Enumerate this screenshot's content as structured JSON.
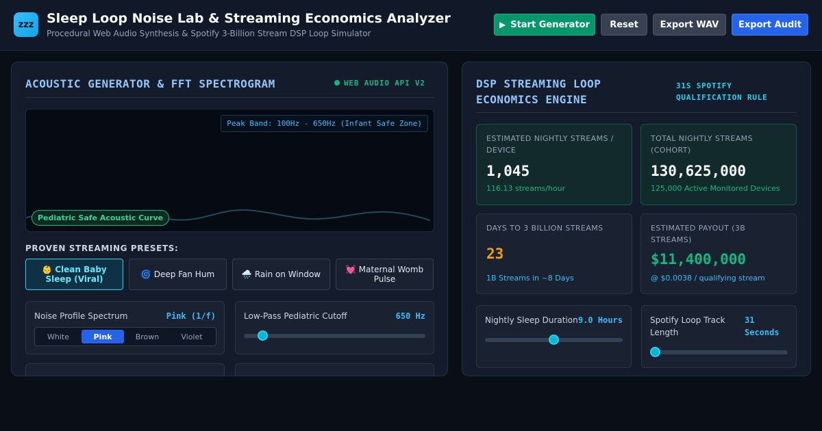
{
  "header": {
    "logo_icon": "zzz",
    "title": "Sleep Loop Noise Lab & Streaming Economics Analyzer",
    "subtitle": "Procedural Web Audio Synthesis & Spotify 3-Billion Stream DSP Loop Simulator",
    "buttons": {
      "start": "Start Generator",
      "start_icon": "▶",
      "reset": "Reset",
      "export_wav": "Export WAV",
      "export_audit": "Export Audit"
    }
  },
  "left_panel": {
    "title": "ACOUSTIC GENERATOR & FFT SPECTROGRAM",
    "badge": "WEB AUDIO API V2",
    "spectrogram": {
      "peak_band": "Peak Band: 100Hz - 650Hz (Infant Safe Zone)",
      "safe_curve_label": "Pediatric Safe Acoustic Curve"
    },
    "presets_label": "PROVEN STREAMING PRESETS:",
    "presets": [
      {
        "emoji": "👶",
        "label": "Clean Baby Sleep (Viral)",
        "active": true
      },
      {
        "emoji": "🌀",
        "label": "Deep Fan Hum",
        "active": false
      },
      {
        "emoji": "🌧️",
        "label": "Rain on Window",
        "active": false
      },
      {
        "emoji": "💓",
        "label": "Maternal Womb Pulse",
        "active": false
      }
    ],
    "noise_profile": {
      "label": "Noise Profile Spectrum",
      "value": "Pink (1/f)",
      "options": [
        "White",
        "Pink",
        "Brown",
        "Violet"
      ],
      "selected": "Pink"
    },
    "lowpass": {
      "label": "Low-Pass Pediatric Cutoff",
      "value": "650 Hz",
      "level": 0.08
    }
  },
  "right_panel": {
    "title": "DSP STREAMING LOOP ECONOMICS ENGINE",
    "badge": "31S SPOTIFY QUALIFICATION RULE",
    "stats": [
      {
        "label": "ESTIMATED NIGHTLY STREAMS / DEVICE",
        "value": "1,045",
        "sub": "116.13 streams/hour",
        "highlight": true
      },
      {
        "label": "TOTAL NIGHTLY STREAMS (COHORT)",
        "value": "130,625,000",
        "sub": "125,000 Active Monitored Devices",
        "highlight": true
      },
      {
        "label": "DAYS TO 3 BILLION STREAMS",
        "value": "23",
        "sub": "1B Streams in ~8 Days",
        "highlight": false,
        "value_color": "#f59e0b"
      },
      {
        "label": "ESTIMATED PAYOUT (3B STREAMS)",
        "value": "$11,400,000",
        "sub": "@ $0.0038 / qualifying stream",
        "highlight": false,
        "value_color": "#10b981"
      }
    ],
    "sleep_duration": {
      "label": "Nightly Sleep Duration",
      "value": "9.0 Hours",
      "level": 0.5
    },
    "loop_length": {
      "label": "Spotify Loop Track Length",
      "value": "31 Seconds",
      "level": 0.0
    }
  },
  "colors": {
    "accent_cyan": "#22d3ee",
    "accent_green": "#10b981",
    "accent_blue": "#2563eb",
    "accent_amber": "#f59e0b"
  }
}
